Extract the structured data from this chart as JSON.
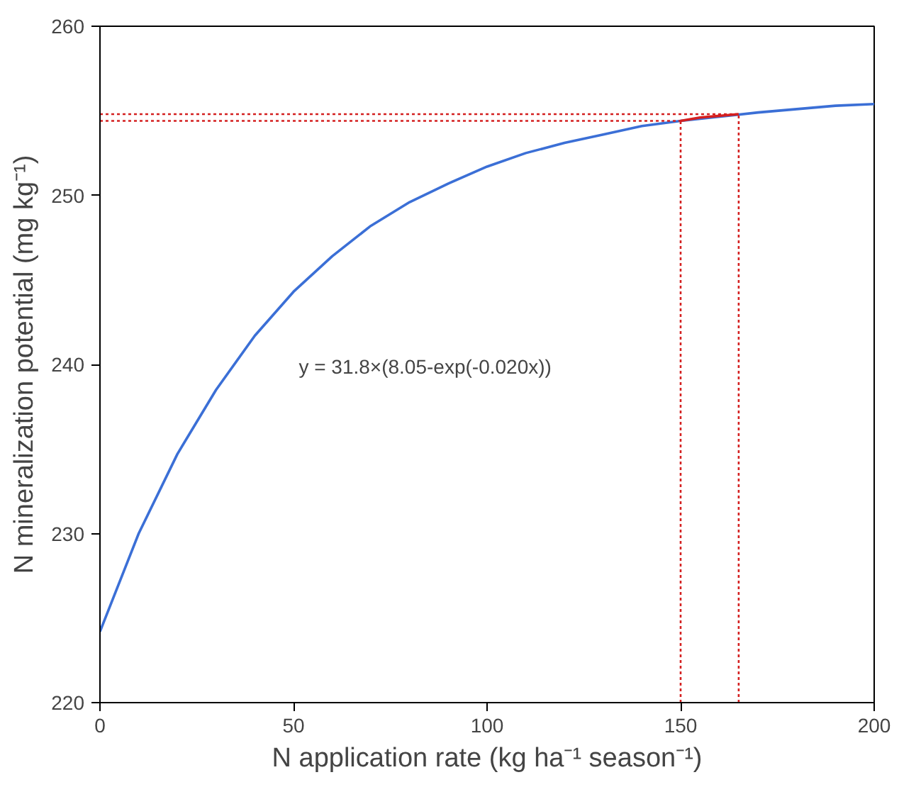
{
  "chart_data": {
    "type": "line",
    "xlabel": "N application rate (kg ha⁻¹ season⁻¹)",
    "ylabel": "N mineralization potential (mg kg⁻¹)",
    "series": [
      {
        "color": "#3b6fd6",
        "line_style": "solid",
        "x": [
          0,
          10,
          20,
          30,
          40,
          50,
          60,
          70,
          80,
          90,
          100,
          110,
          120,
          130,
          140,
          150,
          170,
          180,
          190,
          200
        ],
        "values": [
          224.2,
          230.0,
          234.7,
          238.5,
          241.7,
          244.3,
          246.4,
          248.2,
          249.6,
          250.7,
          251.7,
          252.5,
          253.1,
          253.6,
          254.1,
          254.4,
          254.9,
          255.1,
          255.3,
          255.4
        ]
      },
      {
        "color": "#d42020",
        "line_style": "solid",
        "x": [
          150,
          155,
          160,
          165
        ],
        "values": [
          254.4,
          254.6,
          254.7,
          254.8
        ]
      },
      {
        "color": "#d42020",
        "line_style": "dotted",
        "x": [
          0,
          150
        ],
        "values": [
          254.4,
          254.4
        ]
      },
      {
        "color": "#d42020",
        "line_style": "dotted",
        "x": [
          0,
          165
        ],
        "values": [
          254.8,
          254.8
        ]
      },
      {
        "color": "#d42020",
        "line_style": "dotted",
        "x": [
          150,
          150
        ],
        "values": [
          220,
          254.4
        ]
      },
      {
        "color": "#d42020",
        "line_style": "dotted",
        "x": [
          165,
          165
        ],
        "values": [
          220,
          254.8
        ]
      }
    ],
    "annotations": [
      "y = 31.8×(8.05-exp(-0.020x))"
    ],
    "xlim": [
      0,
      200
    ],
    "ylim": [
      220,
      260
    ],
    "xticks": [
      0,
      50,
      100,
      150,
      200
    ],
    "yticks": [
      220,
      230,
      240,
      250,
      260
    ],
    "grid": false,
    "marker": "none"
  }
}
